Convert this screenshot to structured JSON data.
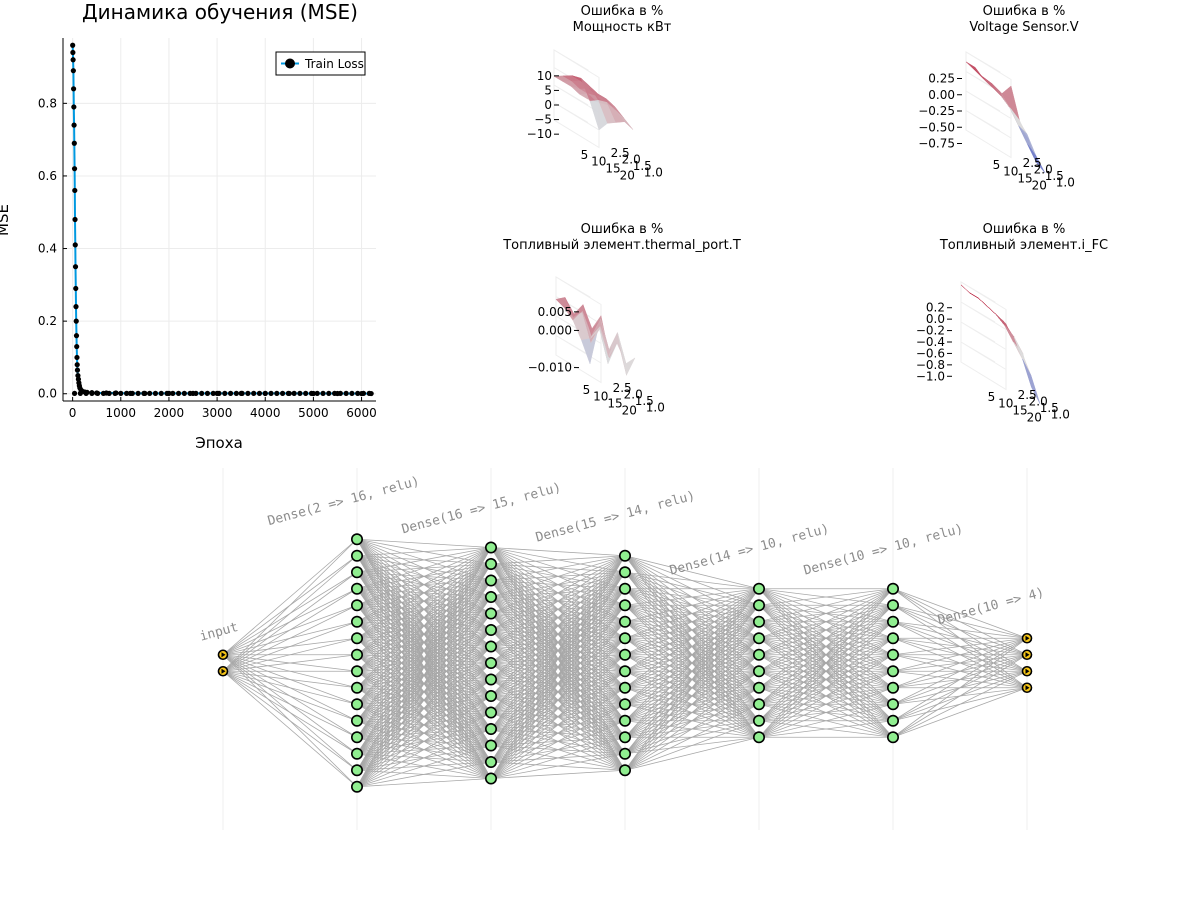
{
  "chart_data": [
    {
      "type": "line",
      "title": "Динамика обучения (MSE)",
      "xlabel": "Эпоха",
      "ylabel": "MSE",
      "xlim": [
        -200,
        6300
      ],
      "ylim": [
        -0.02,
        0.98
      ],
      "xticks": [
        "0",
        "1000",
        "2000",
        "3000",
        "4000",
        "5000",
        "6000"
      ],
      "xtick_values": [
        0,
        1000,
        2000,
        3000,
        4000,
        5000,
        6000
      ],
      "yticks": [
        "0.0",
        "0.2",
        "0.4",
        "0.6",
        "0.8"
      ],
      "ytick_values": [
        0,
        0.2,
        0.4,
        0.6,
        0.8
      ],
      "grid": true,
      "legend": "top-right",
      "series": [
        {
          "name": "Train Loss",
          "color": "#0099e0",
          "marker": "circle",
          "x": [
            1,
            5,
            10,
            15,
            20,
            25,
            30,
            35,
            40,
            45,
            50,
            55,
            60,
            65,
            70,
            75,
            80,
            85,
            90,
            95,
            100,
            110,
            120,
            130,
            140,
            150,
            175,
            200,
            250,
            300,
            400,
            500,
            700,
            900,
            1200,
            1500,
            2000,
            2500,
            3000,
            3500,
            4000,
            4500,
            5000,
            5500,
            6000,
            6200
          ],
          "y": [
            0.96,
            0.94,
            0.92,
            0.89,
            0.84,
            0.79,
            0.74,
            0.69,
            0.62,
            0.56,
            0.48,
            0.41,
            0.35,
            0.29,
            0.24,
            0.2,
            0.16,
            0.13,
            0.1,
            0.08,
            0.065,
            0.05,
            0.04,
            0.03,
            0.022,
            0.016,
            0.01,
            0.007,
            0.005,
            0.004,
            0.003,
            0.002,
            0.002,
            0.002,
            0.001,
            0.001,
            0.001,
            0.001,
            0.001,
            0.001,
            0.0008,
            0.0008,
            0.0006,
            0.0006,
            0.0005,
            0.0005
          ]
        }
      ]
    },
    {
      "type": "surface",
      "title": "Ошибка в %\nМощность кВт",
      "x_ticks": [
        "5",
        "10",
        "15",
        "20"
      ],
      "y_ticks": [
        "1.0",
        "1.5",
        "2.0",
        "2.5"
      ],
      "z_ticks": [
        "10",
        "5",
        "0",
        "−5",
        "−10"
      ],
      "colormap": "coolwarm",
      "zlim": [
        -12,
        12
      ],
      "z_grid": [
        [
          2,
          2,
          3,
          3,
          3
        ],
        [
          3,
          4,
          4,
          5,
          5
        ],
        [
          4,
          5,
          6,
          7,
          7
        ],
        [
          5,
          6,
          6,
          7,
          8
        ],
        [
          3,
          4,
          5,
          4,
          2
        ],
        [
          1,
          2,
          0,
          -2,
          -6
        ]
      ]
    },
    {
      "type": "surface",
      "title": "Ошибка в %\nVoltage Sensor.V",
      "x_ticks": [
        "5",
        "10",
        "15",
        "20"
      ],
      "y_ticks": [
        "1.0",
        "1.5",
        "2.0",
        "2.5"
      ],
      "z_ticks": [
        "0.25",
        "0.00",
        "−0.25",
        "−0.50",
        "−0.75"
      ],
      "colormap": "coolwarm",
      "zlim": [
        -0.85,
        0.35
      ],
      "z_grid": [
        [
          0.05,
          0.1,
          0.12,
          0.15,
          0.2
        ],
        [
          -0.1,
          0.05,
          0.1,
          0.1,
          0.2
        ],
        [
          -0.2,
          -0.1,
          0.0,
          0.05,
          0.1
        ],
        [
          -0.35,
          -0.3,
          -0.1,
          0.0,
          0.1
        ],
        [
          -0.6,
          -0.5,
          -0.3,
          -0.1,
          0.05
        ],
        [
          -0.78,
          -0.7,
          -0.4,
          -0.2,
          0.25
        ]
      ]
    },
    {
      "type": "surface",
      "title": "Ошибка в %\nТопливный элемент.thermal_port.T",
      "x_ticks": [
        "5",
        "10",
        "15",
        "20"
      ],
      "y_ticks": [
        "1.0",
        "1.5",
        "2.0",
        "2.5"
      ],
      "z_ticks": [
        "0.005",
        "0.000",
        "−0.010"
      ],
      "z_tick_values": [
        0.005,
        0.0,
        -0.01
      ],
      "colormap": "coolwarm",
      "zlim": [
        -0.012,
        0.009
      ],
      "z_grid": [
        [
          -0.009,
          -0.004,
          0.0,
          0.002,
          0.003
        ],
        [
          0.003,
          -0.002,
          0.004,
          0.001,
          0.005
        ],
        [
          -0.006,
          0.002,
          -0.003,
          0.004,
          0.002
        ],
        [
          0.001,
          -0.004,
          0.003,
          -0.001,
          0.006
        ],
        [
          -0.003,
          0.004,
          -0.002,
          0.005,
          0.001
        ],
        [
          0.0,
          -0.006,
          0.002,
          -0.004,
          0.006
        ]
      ]
    },
    {
      "type": "surface",
      "title": "Ошибка в %\nТопливный элемент.i_FC",
      "x_ticks": [
        "5",
        "10",
        "15",
        "20"
      ],
      "y_ticks": [
        "1.0",
        "1.5",
        "2.0",
        "2.5"
      ],
      "z_ticks": [
        "0.2",
        "0.0",
        "−0.2",
        "−0.4",
        "−0.6",
        "−0.8",
        "−1.0"
      ],
      "colormap": "coolwarm",
      "zlim": [
        -1.1,
        0.3
      ],
      "z_grid": [
        [
          0.1,
          0.15,
          0.2,
          0.2,
          0.25
        ],
        [
          0.05,
          0.1,
          0.15,
          0.2,
          0.2
        ],
        [
          -0.1,
          0.0,
          0.1,
          0.15,
          0.2
        ],
        [
          -0.3,
          -0.2,
          0.0,
          0.1,
          0.15
        ],
        [
          -0.6,
          -0.4,
          -0.1,
          0.0,
          0.1
        ],
        [
          -1.0,
          -0.8,
          -0.3,
          -0.2,
          0.05
        ]
      ]
    },
    {
      "type": "network-diagram",
      "edge_color": "#a8a8a8",
      "node_fill": "#90ee90",
      "io_fill": "#f5c518",
      "layers": [
        {
          "label": "input",
          "nodes": 2,
          "style": "io"
        },
        {
          "label": "Dense(2 => 16, relu)",
          "nodes": 16,
          "style": "hidden"
        },
        {
          "label": "Dense(16 => 15, relu)",
          "nodes": 15,
          "style": "hidden"
        },
        {
          "label": "Dense(15 => 14, relu)",
          "nodes": 14,
          "style": "hidden"
        },
        {
          "label": "Dense(14 => 10, relu)",
          "nodes": 10,
          "style": "hidden"
        },
        {
          "label": "Dense(10 => 10, relu)",
          "nodes": 10,
          "style": "hidden"
        },
        {
          "label": "Dense(10 => 4)",
          "nodes": 4,
          "style": "io"
        }
      ]
    }
  ]
}
